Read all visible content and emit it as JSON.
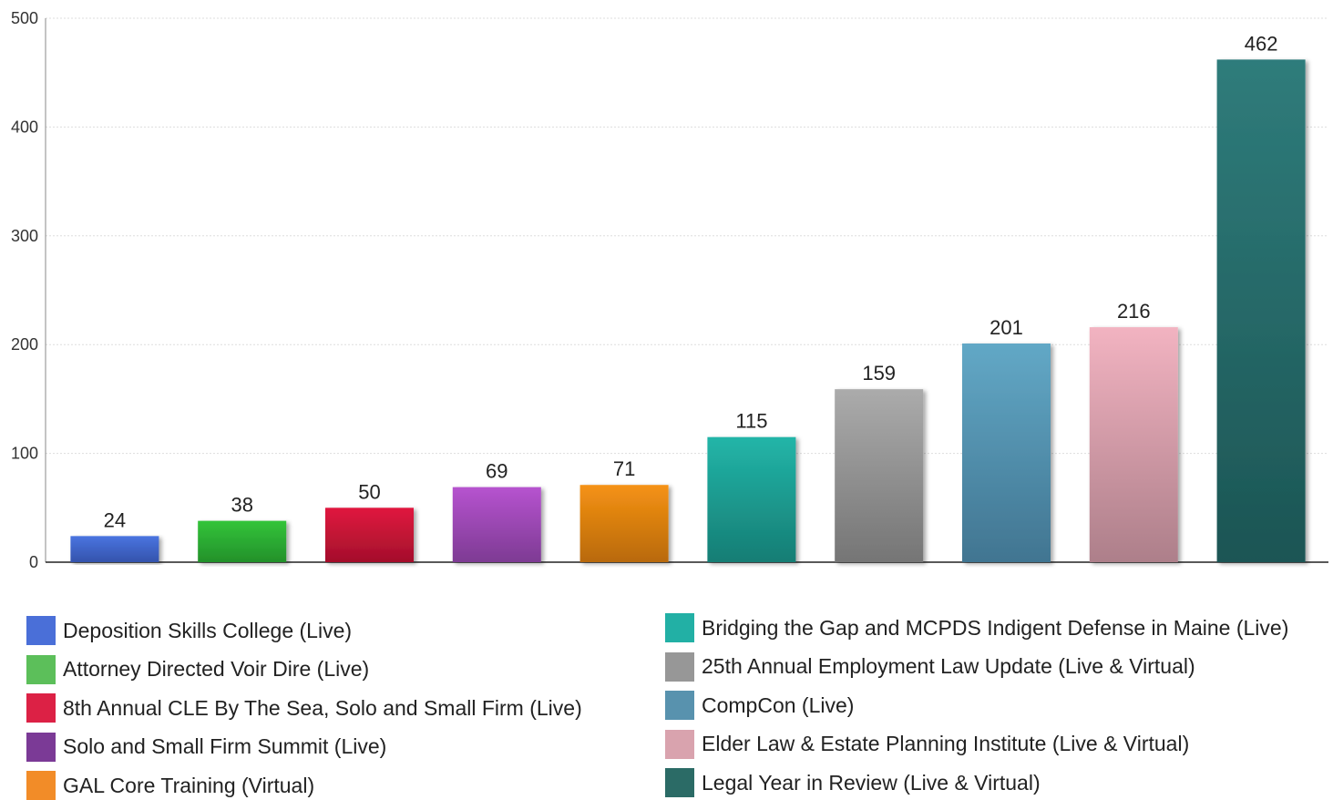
{
  "chart_data": {
    "type": "bar",
    "categories": [
      "Deposition Skills College (Live)",
      "Attorney Directed Voir Dire (Live)",
      "8th Annual CLE By The Sea, Solo and Small Firm (Live)",
      "Solo and Small Firm Summit (Live)",
      "GAL Core Training (Virtual)",
      "Bridging the Gap and MCPDS Indigent Defense in Maine (Live)",
      "25th Annual Employment Law Update (Live & Virtual)",
      "CompCon (Live)",
      "Elder Law & Estate Planning Institute (Live & Virtual)",
      "Legal Year in Review (Live & Virtual)"
    ],
    "values": [
      24,
      38,
      50,
      69,
      71,
      115,
      159,
      201,
      216,
      462
    ],
    "value_labels": [
      "24",
      "38",
      "50",
      "69",
      "71",
      "115",
      "159",
      "201",
      "216",
      "462"
    ],
    "y_ticks": [
      "0",
      "100",
      "200",
      "300",
      "400",
      "500"
    ],
    "ylim": [
      0,
      500
    ],
    "grid": true,
    "legend_position": "bottom",
    "title": "",
    "xlabel": "",
    "ylabel": "",
    "bar_colors": [
      [
        "#4a74e0",
        "#3453ac"
      ],
      [
        "#33c43a",
        "#23902a"
      ],
      [
        "#e0193f",
        "#a30f2b"
      ],
      [
        "#b653cf",
        "#7d3b93"
      ],
      [
        "#f59214",
        "#b8690a"
      ],
      [
        "#22b5a8",
        "#167d74"
      ],
      [
        "#ababab",
        "#757575"
      ],
      [
        "#62a8c6",
        "#417591"
      ],
      [
        "#f2b3c1",
        "#ad7f8a"
      ],
      [
        "#2f7c7b",
        "#1c5554"
      ]
    ],
    "legend_colors": [
      "#4a6fd8",
      "#5cbf5a",
      "#dc2145",
      "#7b3a96",
      "#f28c28",
      "#22b0a5",
      "#979797",
      "#5892ae",
      "#d9a3ae",
      "#2b6b66"
    ]
  }
}
